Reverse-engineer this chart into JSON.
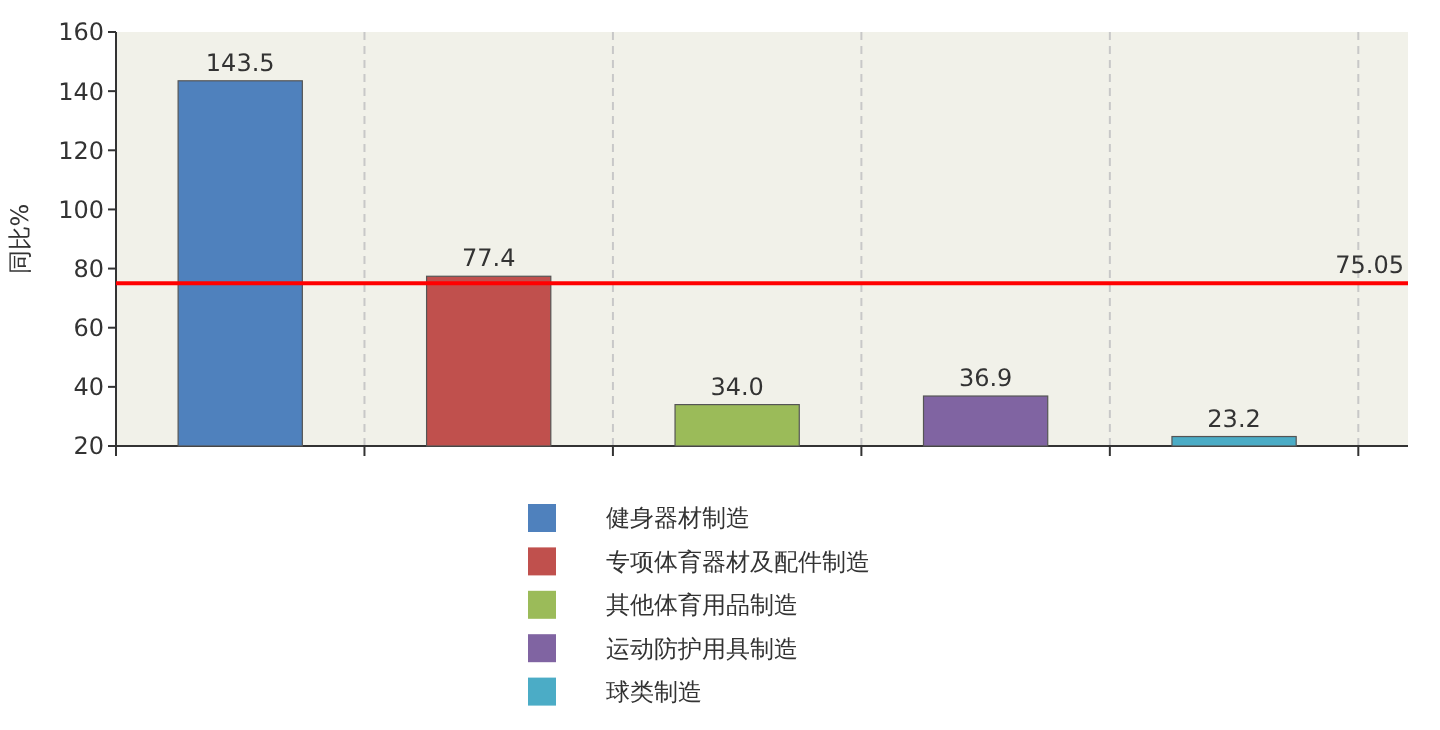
{
  "chart_data": {
    "type": "bar",
    "ylabel": "同比%",
    "categories": [
      null,
      null,
      null,
      null,
      null
    ],
    "series": [
      {
        "name": "健身器材制造",
        "color": "#4f81bd",
        "values": [
          143.5,
          null,
          null,
          null,
          null
        ]
      },
      {
        "name": "专项体育器材及配件制造",
        "color": "#c0504d",
        "values": [
          null,
          77.4,
          null,
          null,
          null
        ]
      },
      {
        "name": "其他体育用品制造",
        "color": "#9bbb59",
        "values": [
          null,
          null,
          34.0,
          null,
          null
        ],
        "value_labels": [
          null,
          null,
          "34.0",
          null,
          null
        ]
      },
      {
        "name": "运动防护用具制造",
        "color": "#8064a2",
        "values": [
          null,
          null,
          null,
          36.9,
          null
        ]
      },
      {
        "name": "球类制造",
        "color": "#4bacc6",
        "values": [
          null,
          null,
          null,
          null,
          23.2
        ]
      }
    ],
    "ylim": [
      20,
      160
    ],
    "yticks": [
      20,
      40,
      60,
      80,
      100,
      120,
      140,
      160
    ],
    "grid": "x",
    "legend": "bottom",
    "data_labels": true,
    "ref_lines": [
      {
        "axis": "y",
        "value": 75.05,
        "label": "75.05",
        "color": "#ff0000"
      }
    ]
  }
}
